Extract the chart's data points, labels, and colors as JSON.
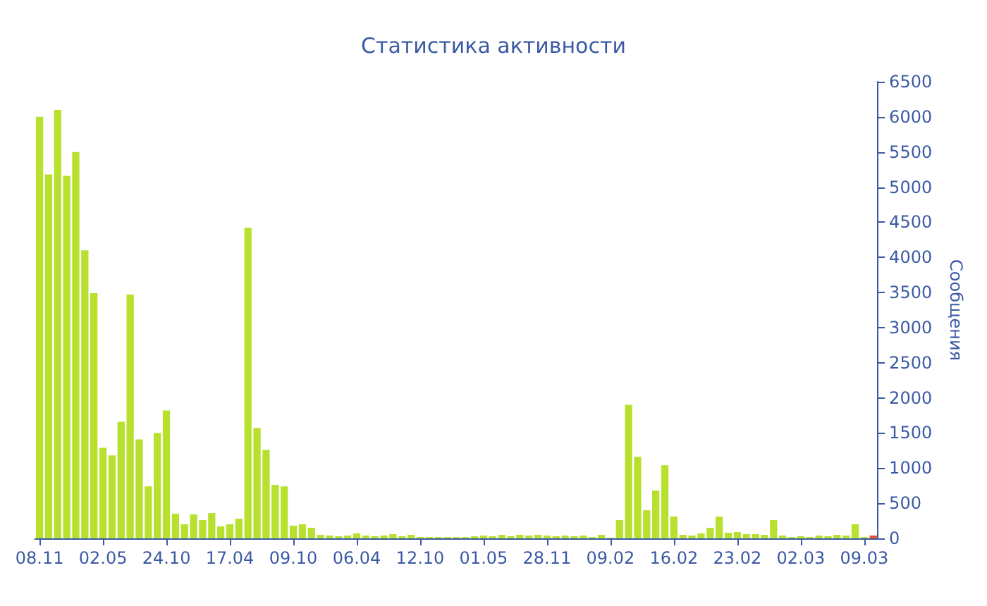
{
  "chart_data": {
    "type": "bar",
    "title": "Статистика активности",
    "ylabel": "Сообщения",
    "categories": [
      "08.11",
      null,
      null,
      null,
      null,
      null,
      null,
      "02.05",
      null,
      null,
      null,
      null,
      null,
      null,
      "24.10",
      null,
      null,
      null,
      null,
      null,
      null,
      "17.04",
      null,
      null,
      null,
      null,
      null,
      null,
      "09.10",
      null,
      null,
      null,
      null,
      null,
      null,
      "06.04",
      null,
      null,
      null,
      null,
      null,
      null,
      "12.10",
      null,
      null,
      null,
      null,
      null,
      null,
      "01.05",
      null,
      null,
      null,
      null,
      null,
      null,
      "28.11",
      null,
      null,
      null,
      null,
      null,
      null,
      "09.02",
      null,
      null,
      null,
      null,
      null,
      null,
      "16.02",
      null,
      null,
      null,
      null,
      null,
      null,
      "23.02",
      null,
      null,
      null,
      null,
      null,
      null,
      "02.03",
      null,
      null,
      null,
      null,
      null,
      null,
      "09.03",
      null
    ],
    "values": [
      6000,
      5180,
      6100,
      5160,
      5500,
      4100,
      3490,
      1290,
      1180,
      1660,
      3470,
      1410,
      740,
      1500,
      1820,
      350,
      200,
      340,
      260,
      360,
      170,
      200,
      280,
      4420,
      1570,
      1260,
      760,
      740,
      180,
      200,
      150,
      50,
      40,
      30,
      40,
      70,
      40,
      30,
      40,
      60,
      30,
      50,
      20,
      20,
      20,
      20,
      20,
      20,
      30,
      40,
      30,
      50,
      30,
      50,
      40,
      50,
      40,
      30,
      40,
      30,
      40,
      20,
      50,
      10,
      260,
      1900,
      1160,
      400,
      680,
      1040,
      310,
      50,
      40,
      70,
      150,
      310,
      80,
      90,
      60,
      60,
      50,
      260,
      40,
      20,
      30,
      20,
      40,
      30,
      50,
      40,
      200,
      20,
      40
    ],
    "colors": [
      "#b8e02e",
      "#b8e02e",
      "#b8e02e",
      "#b8e02e",
      "#b8e02e",
      "#b8e02e",
      "#b8e02e",
      "#b8e02e",
      "#b8e02e",
      "#b8e02e",
      "#b8e02e",
      "#b8e02e",
      "#b8e02e",
      "#b8e02e",
      "#b8e02e",
      "#b8e02e",
      "#b8e02e",
      "#b8e02e",
      "#b8e02e",
      "#b8e02e",
      "#b8e02e",
      "#b8e02e",
      "#b8e02e",
      "#b8e02e",
      "#b8e02e",
      "#b8e02e",
      "#b8e02e",
      "#b8e02e",
      "#b8e02e",
      "#b8e02e",
      "#b8e02e",
      "#b8e02e",
      "#b8e02e",
      "#b8e02e",
      "#b8e02e",
      "#b8e02e",
      "#b8e02e",
      "#b8e02e",
      "#b8e02e",
      "#b8e02e",
      "#b8e02e",
      "#b8e02e",
      "#b8e02e",
      "#b8e02e",
      "#b8e02e",
      "#b8e02e",
      "#b8e02e",
      "#b8e02e",
      "#b8e02e",
      "#b8e02e",
      "#b8e02e",
      "#b8e02e",
      "#b8e02e",
      "#b8e02e",
      "#b8e02e",
      "#b8e02e",
      "#b8e02e",
      "#b8e02e",
      "#b8e02e",
      "#b8e02e",
      "#b8e02e",
      "#b8e02e",
      "#b8e02e",
      "#b8e02e",
      "#b8e02e",
      "#b8e02e",
      "#b8e02e",
      "#b8e02e",
      "#b8e02e",
      "#b8e02e",
      "#b8e02e",
      "#b8e02e",
      "#b8e02e",
      "#b8e02e",
      "#b8e02e",
      "#b8e02e",
      "#b8e02e",
      "#b8e02e",
      "#b8e02e",
      "#b8e02e",
      "#b8e02e",
      "#b8e02e",
      "#b8e02e",
      "#b8e02e",
      "#b8e02e",
      "#b8e02e",
      "#b8e02e",
      "#b8e02e",
      "#b8e02e",
      "#b8e02e",
      "#b8e02e",
      "#b8e02e",
      "#e8532e"
    ],
    "ylim": [
      0,
      6500
    ],
    "yticks": [
      0,
      500,
      1000,
      1500,
      2000,
      2500,
      3000,
      3500,
      4000,
      4500,
      5000,
      5500,
      6000,
      6500
    ]
  }
}
